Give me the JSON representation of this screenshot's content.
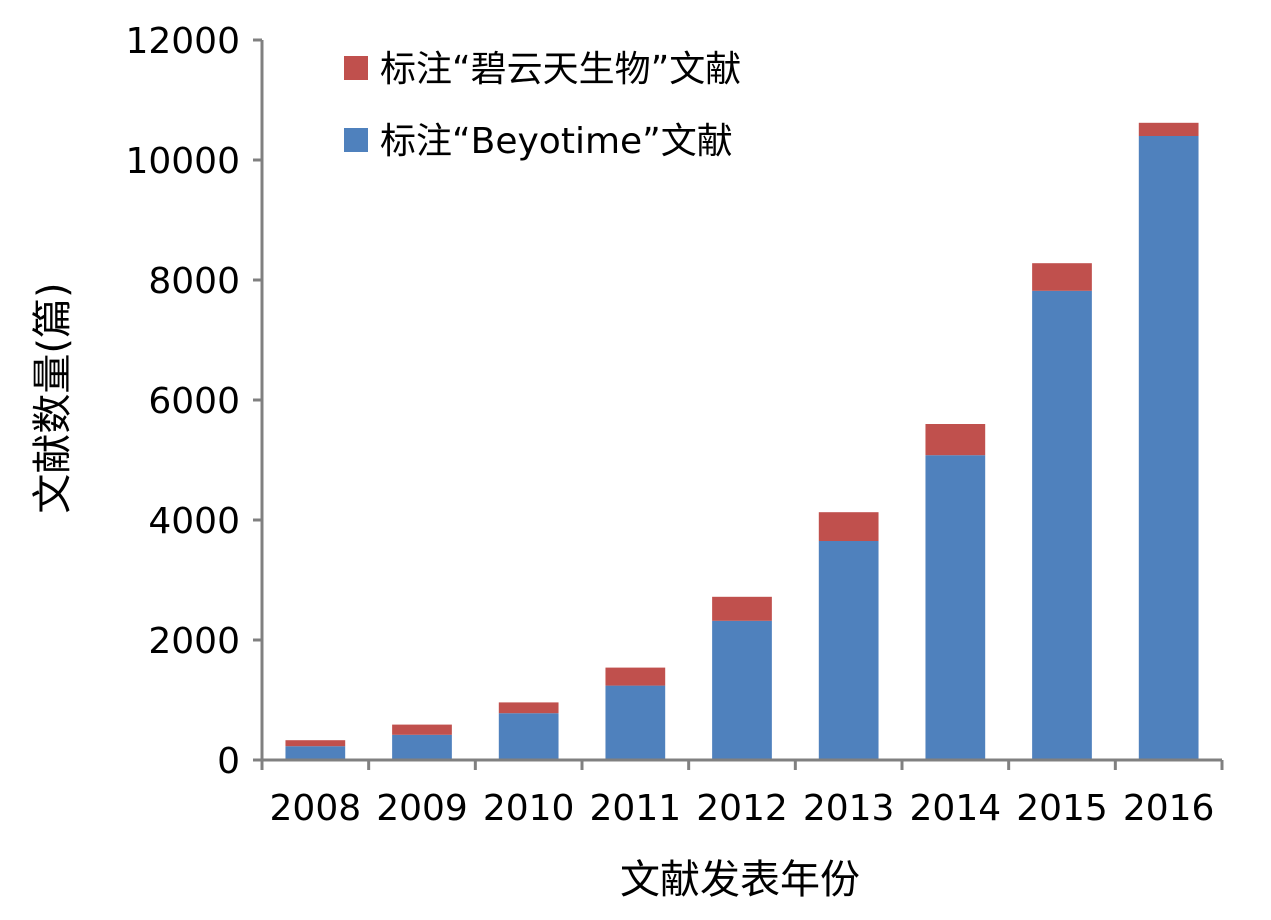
{
  "chart_data": {
    "type": "bar",
    "stacked": true,
    "xlabel": "文献发表年份",
    "ylabel": "文献数量(篇)",
    "categories": [
      "2008",
      "2009",
      "2010",
      "2011",
      "2012",
      "2013",
      "2014",
      "2015",
      "2016"
    ],
    "series": [
      {
        "name": "标注“Beyotime”文献",
        "color": "#4f81bd",
        "values": [
          230,
          420,
          780,
          1240,
          2320,
          3650,
          5080,
          7820,
          10400
        ]
      },
      {
        "name": "标注“碧云天生物”文献",
        "color": "#c0504d",
        "values": [
          100,
          170,
          180,
          300,
          400,
          480,
          520,
          460,
          220
        ]
      }
    ],
    "ylim": [
      0,
      12000
    ],
    "yticks": [
      "0",
      "2000",
      "4000",
      "6000",
      "8000",
      "10000",
      "12000"
    ],
    "grid": false,
    "legend_position": "top-left",
    "axis_color": "#808080"
  }
}
